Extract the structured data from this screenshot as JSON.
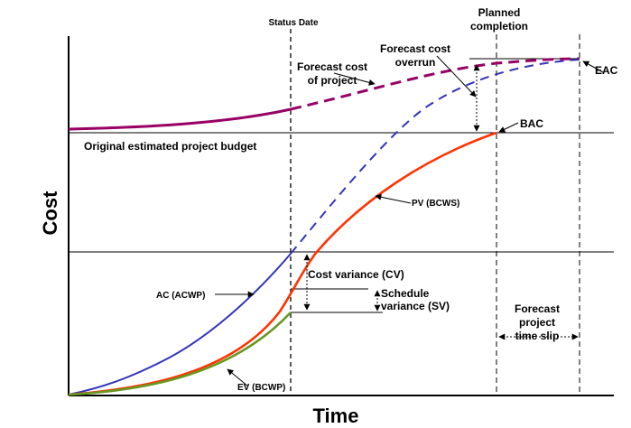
{
  "axes": {
    "y_title": "Cost",
    "x_title": "Time"
  },
  "labels": {
    "status_date": "Status Date",
    "planned_completion_line1": "Planned",
    "planned_completion_line2": "completion",
    "forecast_overrun_line1": "Forecast cost",
    "forecast_overrun_line2": "overrun",
    "forecast_cost_line1": "Forecast cost",
    "forecast_cost_line2": "of project",
    "eac": "EAC",
    "bac": "BAC",
    "original_budget": "Original estimated project budget",
    "pv": "PV (BCWS)",
    "ac": "AC (ACWP)",
    "ev": "EV (BCWP)",
    "cost_variance": "Cost variance (CV)",
    "schedule_variance_line1": "Schedule",
    "schedule_variance_line2": "variance (SV)",
    "forecast_slip_line1": "Forecast",
    "forecast_slip_line2": "project",
    "forecast_slip_line3": "time slip"
  },
  "colors": {
    "pv": "#ff3300",
    "ac": "#3333bb",
    "ev": "#669922",
    "forecast_cost": "#990066",
    "axes": "#000000"
  }
}
